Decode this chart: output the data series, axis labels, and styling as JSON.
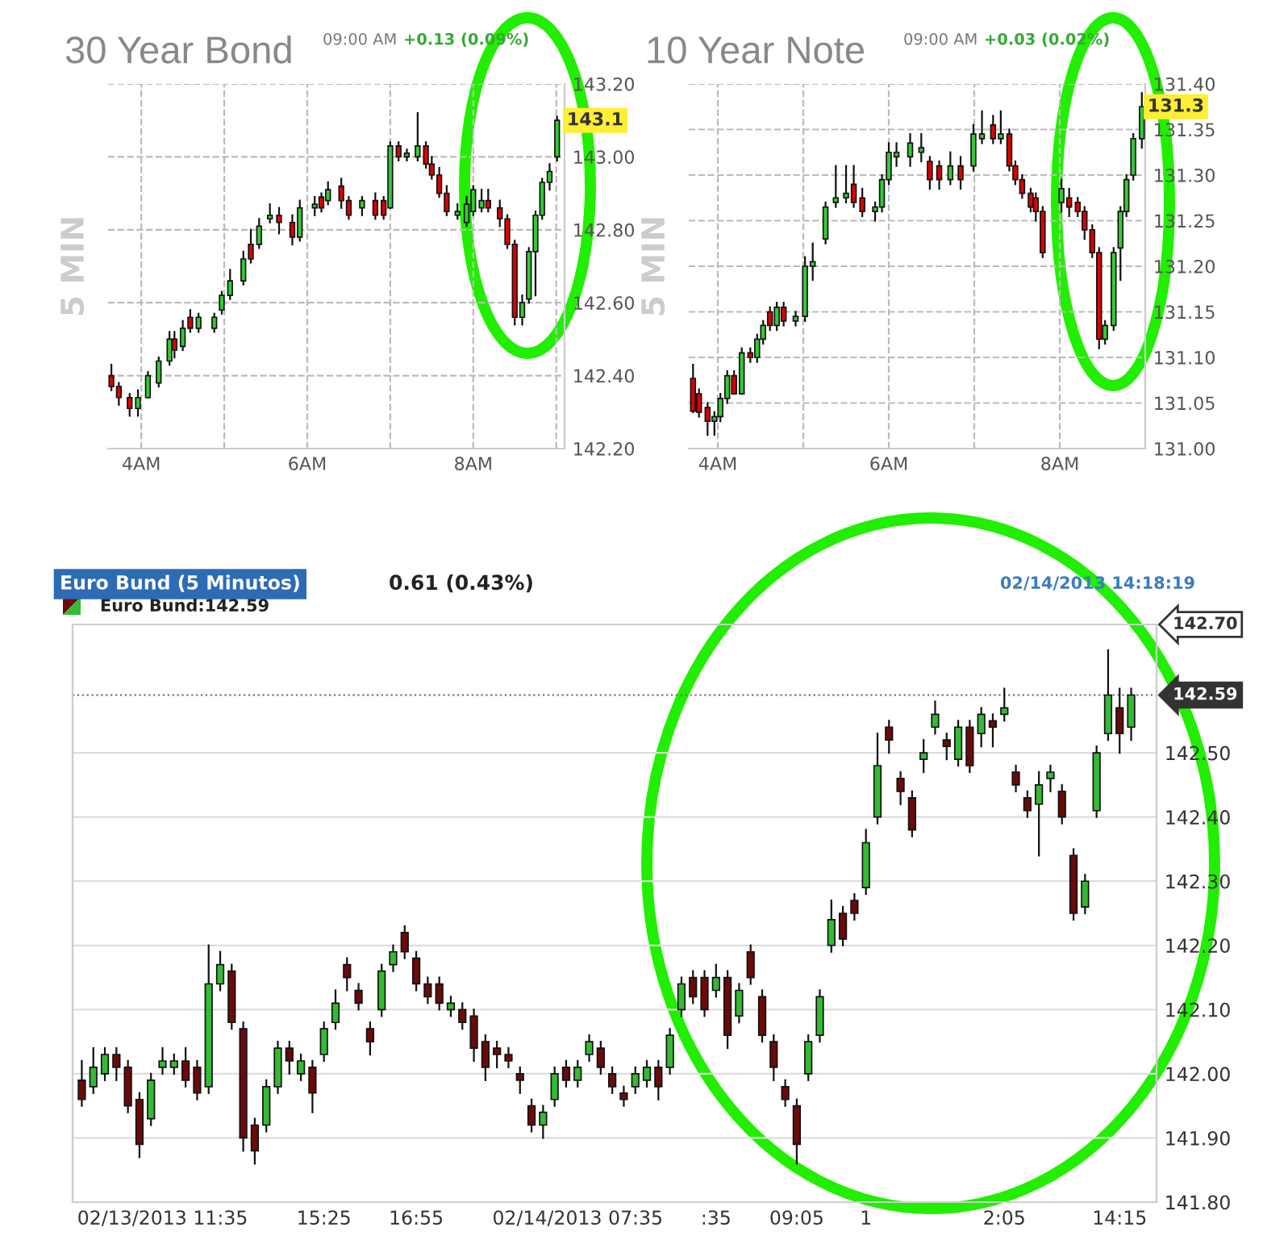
{
  "chart_data": [
    {
      "type": "candlestick",
      "title": "30 Year Bond",
      "subtitle": "09:00 AM",
      "ylabel": "5 MIN",
      "grid": true,
      "colors": [
        "#e00000",
        "#e00000",
        "#e00000",
        "#33cc33",
        "#33cc33",
        "#33cc33",
        "#33cc33",
        "#e00000",
        "#33cc33",
        "#e00000",
        "#33cc33",
        "#33cc33",
        "#33cc33",
        "#33cc33",
        "#33cc33",
        "#e00000",
        "#33cc33",
        "#33cc33",
        "#e00000",
        "#e00000",
        "#33cc33",
        "#33cc33",
        "#e00000",
        "#33cc33",
        "#e00000",
        "#e00000",
        "#33cc33",
        "#e00000",
        "#e00000",
        "#33cc33",
        "#e00000",
        "#33cc33",
        "#33cc33",
        "#e00000",
        "#e00000",
        "#e00000",
        "#e00000",
        "#33cc33",
        "#33cc33",
        "#33cc33",
        "#33cc33",
        "#e00000",
        "#e00000",
        "#e00000",
        "#e00000",
        "#33cc33",
        "#33cc33",
        "#33cc33",
        "#33cc33",
        "#33cc33",
        "#33cc33"
      ],
      "annotations": [
        "+0.13 (0.09%)",
        {
          "text": "143.1",
          "y": 143.1
        }
      ],
      "x": [
        3.64,
        3.73,
        3.86,
        3.96,
        4.08,
        4.21,
        4.34,
        4.4,
        4.5,
        4.59,
        4.69,
        4.88,
        4.97,
        5.07,
        5.23,
        5.32,
        5.42,
        5.55,
        5.66,
        5.82,
        5.91,
        6.09,
        6.17,
        6.25,
        6.41,
        6.5,
        6.66,
        6.82,
        6.92,
        7.0,
        7.1,
        7.2,
        7.33,
        7.43,
        7.5,
        7.59,
        7.68,
        7.81,
        7.92,
        8.0,
        8.1,
        8.18,
        8.32,
        8.41,
        8.5,
        8.59,
        8.67,
        8.75,
        8.83,
        8.92,
        9.01
      ],
      "ohlc": [
        [
          142.4,
          142.43,
          142.36,
          142.37
        ],
        [
          142.37,
          142.38,
          142.32,
          142.34
        ],
        [
          142.34,
          142.35,
          142.29,
          142.31
        ],
        [
          142.31,
          142.36,
          142.29,
          142.34
        ],
        [
          142.34,
          142.41,
          142.34,
          142.4
        ],
        [
          142.38,
          142.45,
          142.37,
          142.44
        ],
        [
          142.44,
          142.52,
          142.43,
          142.5
        ],
        [
          142.5,
          142.52,
          142.45,
          142.47
        ],
        [
          142.48,
          142.55,
          142.47,
          142.53
        ],
        [
          142.56,
          142.58,
          142.52,
          142.53
        ],
        [
          142.53,
          142.57,
          142.52,
          142.56
        ],
        [
          142.53,
          142.57,
          142.52,
          142.56
        ],
        [
          142.58,
          142.63,
          142.57,
          142.62
        ],
        [
          142.62,
          142.69,
          142.61,
          142.66
        ],
        [
          142.66,
          142.74,
          142.65,
          142.72
        ],
        [
          142.76,
          142.8,
          142.71,
          142.72
        ],
        [
          142.76,
          142.83,
          142.75,
          142.81
        ],
        [
          142.83,
          142.87,
          142.82,
          142.84
        ],
        [
          142.84,
          142.86,
          142.79,
          142.82
        ],
        [
          142.82,
          142.84,
          142.76,
          142.78
        ],
        [
          142.78,
          142.88,
          142.77,
          142.86
        ],
        [
          142.86,
          142.89,
          142.84,
          142.87
        ],
        [
          142.89,
          142.9,
          142.85,
          142.86
        ],
        [
          142.88,
          142.93,
          142.87,
          142.91
        ],
        [
          142.92,
          142.94,
          142.86,
          142.88
        ],
        [
          142.88,
          142.89,
          142.83,
          142.84
        ],
        [
          142.86,
          142.89,
          142.84,
          142.88
        ],
        [
          142.88,
          142.9,
          142.83,
          142.84
        ],
        [
          142.88,
          142.89,
          142.83,
          142.84
        ],
        [
          142.86,
          143.04,
          142.86,
          143.03
        ],
        [
          143.03,
          143.04,
          142.99,
          143.0
        ],
        [
          143.0,
          143.02,
          142.99,
          143.01
        ],
        [
          143.0,
          143.12,
          142.99,
          143.03
        ],
        [
          143.03,
          143.04,
          142.97,
          142.98
        ],
        [
          142.98,
          143.0,
          142.94,
          142.95
        ],
        [
          142.95,
          142.97,
          142.89,
          142.9
        ],
        [
          142.9,
          142.92,
          142.84,
          142.85
        ],
        [
          142.84,
          142.87,
          142.83,
          142.85
        ],
        [
          142.82,
          142.89,
          142.81,
          142.87
        ],
        [
          142.85,
          142.92,
          142.84,
          142.91
        ],
        [
          142.86,
          142.91,
          142.85,
          142.88
        ],
        [
          142.88,
          142.91,
          142.85,
          142.86
        ],
        [
          142.86,
          142.88,
          142.81,
          142.83
        ],
        [
          142.83,
          142.84,
          142.75,
          142.76
        ],
        [
          142.76,
          142.77,
          142.54,
          142.56
        ],
        [
          142.56,
          142.62,
          142.54,
          142.6
        ],
        [
          142.61,
          142.75,
          142.6,
          142.74
        ],
        [
          142.74,
          142.85,
          142.62,
          142.84
        ],
        [
          142.84,
          142.94,
          142.83,
          142.93
        ],
        [
          142.93,
          142.98,
          142.91,
          142.96
        ],
        [
          143.0,
          143.11,
          142.99,
          143.1
        ]
      ],
      "xlim": [
        3.6,
        9.1
      ],
      "xticks": [
        {
          "value": 4,
          "label": "4AM"
        },
        {
          "value": 5,
          "label": null
        },
        {
          "value": 6,
          "label": "6AM"
        },
        {
          "value": 7,
          "label": null
        },
        {
          "value": 8,
          "label": "8AM"
        },
        {
          "value": 9,
          "label": null
        }
      ],
      "ylim": [
        142.2,
        143.2
      ],
      "yticks": [
        {
          "value": 142.2,
          "label": "142.20"
        },
        {
          "value": 142.4,
          "label": "142.40"
        },
        {
          "value": 142.6,
          "label": "142.60"
        },
        {
          "value": 142.8,
          "label": "142.80"
        },
        {
          "value": 143.0,
          "label": "143.00"
        },
        {
          "value": 143.2,
          "label": "143.20"
        }
      ]
    },
    {
      "type": "candlestick",
      "title": "10 Year Note",
      "subtitle": "09:00 AM",
      "ylabel": "5 MIN",
      "grid": true,
      "colors": [
        "#e00000",
        "#e00000",
        "#e00000",
        "#33cc33",
        "#33cc33",
        "#33cc33",
        "#e00000",
        "#33cc33",
        "#e00000",
        "#33cc33",
        "#33cc33",
        "#e00000",
        "#33cc33",
        "#e00000",
        "#33cc33",
        "#33cc33",
        "#33cc33",
        "#33cc33",
        "#33cc33",
        "#33cc33",
        "#e00000",
        "#e00000",
        "#33cc33",
        "#33cc33",
        "#33cc33",
        "#33cc33",
        "#33cc33",
        "#33cc33",
        "#e00000",
        "#e00000",
        "#33cc33",
        "#e00000",
        "#33cc33",
        "#33cc33",
        "#e00000",
        "#33cc33",
        "#e00000",
        "#e00000",
        "#e00000",
        "#e00000",
        "#e00000",
        "#e00000",
        "#33cc33",
        "#e00000",
        "#e00000",
        "#e00000",
        "#e00000",
        "#e00000",
        "#33cc33",
        "#33cc33",
        "#33cc33",
        "#33cc33",
        "#33cc33",
        "#33cc33"
      ],
      "annotations": [
        "+0.03 (0.02%)",
        {
          "text": "131.3",
          "y": 131.375
        }
      ],
      "x": [
        3.71,
        3.78,
        3.88,
        3.96,
        4.03,
        4.11,
        4.19,
        4.28,
        4.38,
        4.46,
        4.53,
        4.61,
        4.69,
        4.77,
        4.91,
        5.02,
        5.11,
        5.26,
        5.38,
        5.5,
        5.59,
        5.69,
        5.84,
        5.92,
        6.0,
        6.09,
        6.25,
        6.38,
        6.48,
        6.59,
        6.72,
        6.84,
        6.99,
        7.09,
        7.22,
        7.31,
        7.41,
        7.48,
        7.56,
        7.66,
        7.72,
        7.8,
        8.02,
        8.11,
        8.21,
        8.29,
        8.38,
        8.46,
        8.53,
        8.63,
        8.71,
        8.78,
        8.86,
        8.96
      ],
      "ohlc": [
        [
          131.077,
          131.092,
          131.04,
          131.041
        ],
        [
          131.06,
          131.065,
          131.035,
          131.04
        ],
        [
          131.045,
          131.05,
          131.015,
          131.03
        ],
        [
          131.03,
          131.04,
          131.015,
          131.035
        ],
        [
          131.035,
          131.06,
          131.03,
          131.055
        ],
        [
          131.055,
          131.085,
          131.05,
          131.08
        ],
        [
          131.08,
          131.085,
          131.06,
          131.06
        ],
        [
          131.06,
          131.11,
          131.06,
          131.105
        ],
        [
          131.105,
          131.11,
          131.095,
          131.1
        ],
        [
          131.1,
          131.125,
          131.095,
          131.12
        ],
        [
          131.12,
          131.14,
          131.115,
          131.135
        ],
        [
          131.15,
          131.155,
          131.13,
          131.135
        ],
        [
          131.135,
          131.16,
          131.13,
          131.155
        ],
        [
          131.155,
          131.16,
          131.135,
          131.14
        ],
        [
          131.14,
          131.15,
          131.135,
          131.145
        ],
        [
          131.145,
          131.21,
          131.14,
          131.2
        ],
        [
          131.2,
          131.225,
          131.185,
          131.205
        ],
        [
          131.23,
          131.27,
          131.225,
          131.265
        ],
        [
          131.27,
          131.31,
          131.265,
          131.275
        ],
        [
          131.275,
          131.31,
          131.27,
          131.28
        ],
        [
          131.29,
          131.31,
          131.265,
          131.27
        ],
        [
          131.275,
          131.285,
          131.255,
          131.26
        ],
        [
          131.26,
          131.27,
          131.25,
          131.265
        ],
        [
          131.265,
          131.3,
          131.26,
          131.295
        ],
        [
          131.295,
          131.335,
          131.29,
          131.325
        ],
        [
          131.32,
          131.335,
          131.31,
          131.325
        ],
        [
          131.32,
          131.345,
          131.31,
          131.335
        ],
        [
          131.325,
          131.345,
          131.315,
          131.33
        ],
        [
          131.315,
          131.32,
          131.285,
          131.295
        ],
        [
          131.31,
          131.315,
          131.285,
          131.295
        ],
        [
          131.295,
          131.325,
          131.29,
          131.31
        ],
        [
          131.31,
          131.32,
          131.285,
          131.295
        ],
        [
          131.31,
          131.355,
          131.305,
          131.345
        ],
        [
          131.34,
          131.37,
          131.335,
          131.345
        ],
        [
          131.355,
          131.365,
          131.335,
          131.34
        ],
        [
          131.34,
          131.37,
          131.335,
          131.345
        ],
        [
          131.345,
          131.35,
          131.305,
          131.31
        ],
        [
          131.31,
          131.315,
          131.29,
          131.295
        ],
        [
          131.295,
          131.3,
          131.275,
          131.28
        ],
        [
          131.28,
          131.285,
          131.26,
          131.265
        ],
        [
          131.275,
          131.28,
          131.25,
          131.26
        ],
        [
          131.26,
          131.265,
          131.21,
          131.215
        ],
        [
          131.27,
          131.295,
          131.26,
          131.285
        ],
        [
          131.275,
          131.285,
          131.255,
          131.265
        ],
        [
          131.27,
          131.275,
          131.255,
          131.26
        ],
        [
          131.26,
          131.265,
          131.23,
          131.24
        ],
        [
          131.24,
          131.245,
          131.21,
          131.215
        ],
        [
          131.215,
          131.22,
          131.11,
          131.12
        ],
        [
          131.12,
          131.14,
          131.115,
          131.135
        ],
        [
          131.135,
          131.22,
          131.13,
          131.215
        ],
        [
          131.22,
          131.265,
          131.185,
          131.26
        ],
        [
          131.26,
          131.3,
          131.255,
          131.295
        ],
        [
          131.3,
          131.345,
          131.295,
          131.34
        ],
        [
          131.34,
          131.39,
          131.33,
          131.375
        ]
      ],
      "xlim": [
        3.66,
        9.0
      ],
      "xticks": [
        {
          "value": 4,
          "label": "4AM"
        },
        {
          "value": 5,
          "label": null
        },
        {
          "value": 6,
          "label": "6AM"
        },
        {
          "value": 7,
          "label": null
        },
        {
          "value": 8,
          "label": "8AM"
        },
        {
          "value": 9,
          "label": null
        }
      ],
      "ylim": [
        131.0,
        131.4
      ],
      "yticks": [
        {
          "value": 131.0,
          "label": "131.00"
        },
        {
          "value": 131.05,
          "label": "131.05"
        },
        {
          "value": 131.1,
          "label": "131.10"
        },
        {
          "value": 131.15,
          "label": "131.15"
        },
        {
          "value": 131.2,
          "label": "131.20"
        },
        {
          "value": 131.25,
          "label": "131.25"
        },
        {
          "value": 131.3,
          "label": "131.30"
        },
        {
          "value": 131.35,
          "label": "131.35"
        },
        {
          "value": 131.4,
          "label": "131.40"
        }
      ]
    },
    {
      "type": "candlestick",
      "title": "Euro Bund (5 Minutos)",
      "subtitle": "0.61 (0.43%)",
      "grid": "y",
      "colors": [
        "#6b0a0a",
        "#33bb33",
        "#33bb33",
        "#6b0a0a",
        "#6b0a0a",
        "#6b0a0a",
        "#33bb33",
        "#33bb33",
        "#33bb33",
        "#6b0a0a",
        "#6b0a0a",
        "#33bb33",
        "#33bb33",
        "#6b0a0a",
        "#6b0a0a",
        "#6b0a0a",
        "#33bb33",
        "#33bb33",
        "#6b0a0a",
        "#33bb33",
        "#6b0a0a",
        "#33bb33",
        "#33bb33",
        "#6b0a0a",
        "#6b0a0a",
        "#6b0a0a",
        "#33bb33",
        "#33bb33",
        "#6b0a0a",
        "#6b0a0a",
        "#6b0a0a",
        "#6b0a0a",
        "#33bb33",
        "#6b0a0a",
        "#6b0a0a",
        "#6b0a0a",
        "#6b0a0a",
        "#6b0a0a",
        "#6b0a0a",
        "#6b0a0a",
        "#33bb33",
        "#33bb33",
        "#6b0a0a",
        "#33bb33",
        "#33bb33",
        "#6b0a0a",
        "#6b0a0a",
        "#6b0a0a",
        "#33bb33",
        "#33bb33",
        "#6b0a0a",
        "#33bb33",
        "#33bb33",
        "#6b0a0a",
        "#6b0a0a",
        "#33bb33",
        "#6b0a0a",
        "#33bb33",
        "#6b0a0a",
        "#6b0a0a",
        "#6b0a0a",
        "#6b0a0a",
        "#6b0a0a",
        "#33bb33",
        "#33bb33",
        "#33bb33",
        "#6b0a0a",
        "#6b0a0a",
        "#33bb33",
        "#33bb33",
        "#6b0a0a",
        "#6b0a0a",
        "#6b0a0a",
        "#33bb33",
        "#33bb33",
        "#6b0a0a",
        "#33bb33",
        "#6b0a0a",
        "#33bb33",
        "#6b0a0a",
        "#33bb33",
        "#6b0a0a",
        "#6b0a0a",
        "#33bb33",
        "#33bb33",
        "#6b0a0a",
        "#6b0a0a",
        "#33bb33",
        "#33bb33",
        "#33bb33",
        "#6b0a0a",
        "#33bb33"
      ],
      "annotations": [
        "Euro Bund:142.59",
        "02/14/2013 14:18:19",
        "142.70"
      ],
      "ref_lines": [
        {
          "axis": "y",
          "value": 142.59,
          "label": "142.59",
          "color": "#666666",
          "line_style": "dotted"
        }
      ],
      "categories": [
        null,
        null,
        null,
        null,
        null,
        null,
        null,
        "02/13/2013 11:35",
        null,
        null,
        null,
        null,
        null,
        null,
        null,
        null,
        null,
        null,
        null,
        null,
        null,
        "15:25",
        null,
        null,
        null,
        null,
        null,
        null,
        null,
        "16:55",
        null,
        null,
        null,
        null,
        null,
        null,
        null,
        null,
        null,
        null,
        null,
        null,
        null,
        "02/14/2013 07:35",
        null,
        null,
        null,
        null,
        null,
        null,
        null,
        null,
        null,
        null,
        null,
        ":35",
        null,
        null,
        null,
        null,
        null,
        null,
        "09:05",
        null,
        null,
        null,
        null,
        null,
        "1",
        null,
        null,
        null,
        null,
        null,
        null,
        null,
        null,
        null,
        null,
        null,
        "2:05",
        null,
        null,
        null,
        null,
        null,
        null,
        null,
        null,
        null,
        "14:15",
        null
      ],
      "ohlc": [
        [
          141.99,
          142.02,
          141.95,
          141.96
        ],
        [
          141.98,
          142.04,
          141.97,
          142.01
        ],
        [
          142.0,
          142.04,
          141.99,
          142.03
        ],
        [
          142.03,
          142.04,
          141.99,
          142.01
        ],
        [
          142.01,
          142.02,
          141.94,
          141.95
        ],
        [
          141.96,
          141.97,
          141.87,
          141.89
        ],
        [
          141.93,
          142.0,
          141.92,
          141.99
        ],
        [
          142.01,
          142.04,
          142.0,
          142.02
        ],
        [
          142.01,
          142.03,
          142.0,
          142.02
        ],
        [
          142.02,
          142.04,
          141.98,
          141.99
        ],
        [
          142.01,
          142.02,
          141.96,
          141.97
        ],
        [
          141.98,
          142.2,
          141.97,
          142.14
        ],
        [
          142.14,
          142.19,
          142.13,
          142.17
        ],
        [
          142.16,
          142.17,
          142.07,
          142.08
        ],
        [
          142.07,
          142.08,
          141.88,
          141.9
        ],
        [
          141.92,
          141.93,
          141.86,
          141.88
        ],
        [
          141.92,
          141.99,
          141.91,
          141.98
        ],
        [
          141.98,
          142.05,
          141.97,
          142.04
        ],
        [
          142.04,
          142.05,
          142.0,
          142.02
        ],
        [
          142.0,
          142.03,
          141.99,
          142.02
        ],
        [
          142.01,
          142.02,
          141.94,
          141.97
        ],
        [
          142.03,
          142.08,
          142.02,
          142.07
        ],
        [
          142.08,
          142.13,
          142.07,
          142.11
        ],
        [
          142.17,
          142.18,
          142.13,
          142.15
        ],
        [
          142.13,
          142.14,
          142.1,
          142.11
        ],
        [
          142.07,
          142.08,
          142.03,
          142.05
        ],
        [
          142.1,
          142.17,
          142.09,
          142.16
        ],
        [
          142.17,
          142.2,
          142.16,
          142.19
        ],
        [
          142.22,
          142.23,
          142.18,
          142.19
        ],
        [
          142.18,
          142.19,
          142.13,
          142.14
        ],
        [
          142.14,
          142.15,
          142.11,
          142.12
        ],
        [
          142.14,
          142.15,
          142.1,
          142.11
        ],
        [
          142.1,
          142.12,
          142.09,
          142.11
        ],
        [
          142.1,
          142.11,
          142.07,
          142.08
        ],
        [
          142.09,
          142.1,
          142.02,
          142.04
        ],
        [
          142.05,
          142.06,
          141.99,
          142.01
        ],
        [
          142.04,
          142.05,
          142.01,
          142.03
        ],
        [
          142.03,
          142.04,
          142.01,
          142.02
        ],
        [
          142.0,
          142.01,
          141.97,
          141.99
        ],
        [
          141.95,
          141.96,
          141.91,
          141.92
        ],
        [
          141.92,
          141.95,
          141.9,
          141.94
        ],
        [
          141.96,
          142.01,
          141.95,
          142.0
        ],
        [
          142.01,
          142.02,
          141.98,
          141.99
        ],
        [
          141.99,
          142.02,
          141.98,
          142.01
        ],
        [
          142.03,
          142.06,
          142.02,
          142.05
        ],
        [
          142.04,
          142.05,
          142.0,
          142.01
        ],
        [
          142.0,
          142.01,
          141.97,
          141.98
        ],
        [
          141.97,
          141.98,
          141.95,
          141.96
        ],
        [
          141.98,
          142.01,
          141.97,
          142.0
        ],
        [
          141.99,
          142.02,
          141.98,
          142.01
        ],
        [
          142.01,
          142.02,
          141.96,
          141.98
        ],
        [
          142.01,
          142.07,
          142.0,
          142.06
        ],
        [
          142.1,
          142.15,
          142.09,
          142.14
        ],
        [
          142.15,
          142.16,
          142.11,
          142.12
        ],
        [
          142.15,
          142.16,
          142.09,
          142.1
        ],
        [
          142.13,
          142.17,
          142.12,
          142.15
        ],
        [
          142.15,
          142.16,
          142.04,
          142.06
        ],
        [
          142.09,
          142.14,
          142.08,
          142.13
        ],
        [
          142.19,
          142.2,
          142.14,
          142.15
        ],
        [
          142.12,
          142.13,
          142.05,
          142.06
        ],
        [
          142.05,
          142.06,
          141.99,
          142.01
        ],
        [
          141.98,
          141.99,
          141.95,
          141.96
        ],
        [
          141.95,
          141.96,
          141.86,
          141.89
        ],
        [
          142.0,
          142.06,
          141.99,
          142.05
        ],
        [
          142.06,
          142.13,
          142.05,
          142.12
        ],
        [
          142.2,
          142.27,
          142.19,
          142.24
        ],
        [
          142.25,
          142.26,
          142.2,
          142.21
        ],
        [
          142.27,
          142.28,
          142.24,
          142.25
        ],
        [
          142.29,
          142.38,
          142.28,
          142.36
        ],
        [
          142.4,
          142.53,
          142.39,
          142.48
        ],
        [
          142.54,
          142.55,
          142.5,
          142.52
        ],
        [
          142.46,
          142.47,
          142.42,
          142.44
        ],
        [
          142.43,
          142.44,
          142.37,
          142.38
        ],
        [
          142.49,
          142.52,
          142.47,
          142.5
        ],
        [
          142.54,
          142.58,
          142.53,
          142.56
        ],
        [
          142.52,
          142.53,
          142.49,
          142.51
        ],
        [
          142.49,
          142.55,
          142.48,
          142.54
        ],
        [
          142.54,
          142.55,
          142.47,
          142.48
        ],
        [
          142.53,
          142.57,
          142.51,
          142.56
        ],
        [
          142.55,
          142.56,
          142.51,
          142.54
        ],
        [
          142.56,
          142.6,
          142.55,
          142.57
        ],
        [
          142.47,
          142.48,
          142.44,
          142.45
        ],
        [
          142.43,
          142.44,
          142.4,
          142.41
        ],
        [
          142.42,
          142.47,
          142.34,
          142.45
        ],
        [
          142.46,
          142.48,
          142.44,
          142.47
        ],
        [
          142.44,
          142.45,
          142.39,
          142.4
        ],
        [
          142.34,
          142.35,
          142.24,
          142.25
        ],
        [
          142.26,
          142.31,
          142.25,
          142.3
        ],
        [
          142.41,
          142.51,
          142.4,
          142.5
        ],
        [
          142.53,
          142.66,
          142.52,
          142.59
        ],
        [
          142.57,
          142.6,
          142.5,
          142.53
        ],
        [
          142.54,
          142.6,
          142.52,
          142.59
        ]
      ],
      "ylim": [
        141.8,
        142.7
      ],
      "yticks": [
        {
          "value": 141.8,
          "label": "141.80"
        },
        {
          "value": 141.9,
          "label": "141.90"
        },
        {
          "value": 142.0,
          "label": "142.00"
        },
        {
          "value": 142.1,
          "label": "142.10"
        },
        {
          "value": 142.2,
          "label": "142.20"
        },
        {
          "value": 142.3,
          "label": "142.30"
        },
        {
          "value": 142.4,
          "label": "142.40"
        },
        {
          "value": 142.5,
          "label": "142.50"
        }
      ]
    }
  ]
}
